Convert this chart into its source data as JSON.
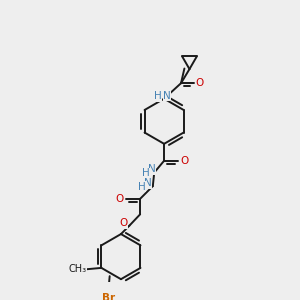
{
  "background_color": "#eeeeee",
  "bond_color": "#1a1a1a",
  "N_color": "#4682b4",
  "O_color": "#cc0000",
  "Br_color": "#cc6600",
  "figsize": [
    3.0,
    3.0
  ],
  "dpi": 100,
  "xlim": [
    0,
    10
  ],
  "ylim": [
    0,
    10
  ],
  "ring_r": 0.8,
  "lw": 1.4,
  "fs": 7.5
}
